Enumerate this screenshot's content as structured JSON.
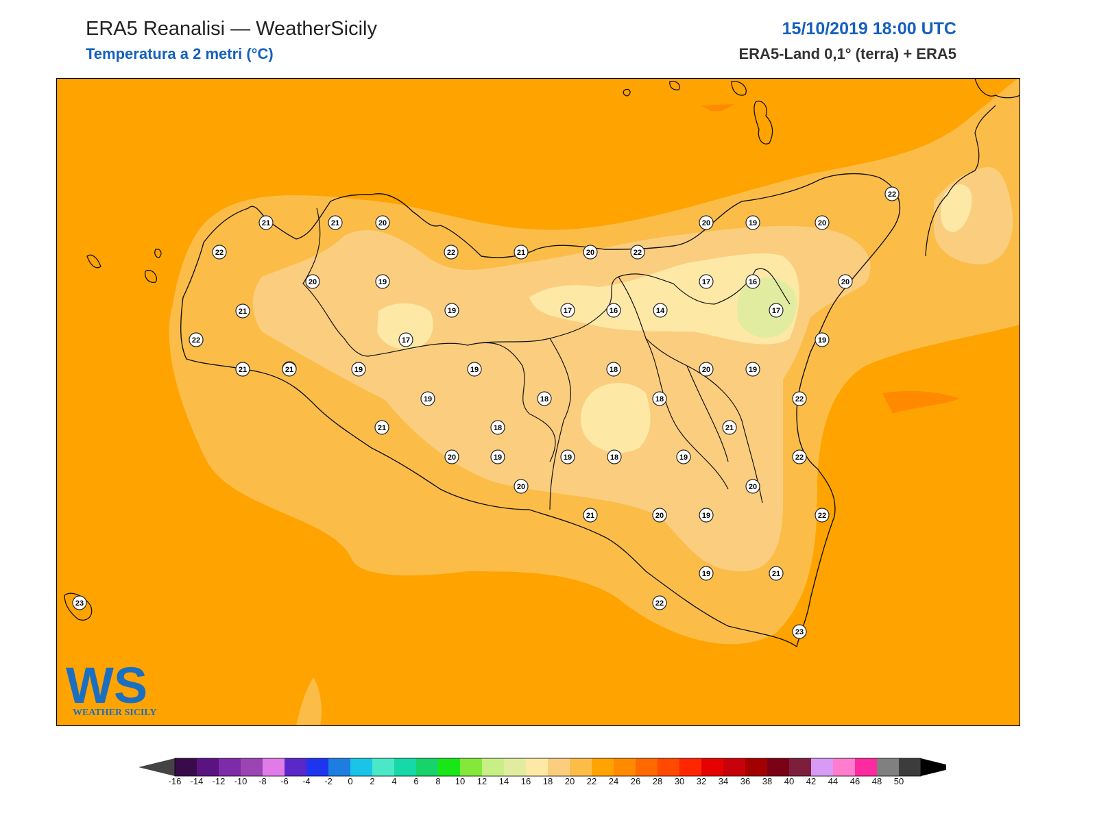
{
  "header": {
    "title": "ERA5 Reanalisi — WeatherSicily",
    "subtitle": "Temperatura a 2 metri (°C)",
    "datetime": "15/10/2019 18:00 UTC",
    "source": "ERA5-Land 0,1° (terra) + ERA5"
  },
  "logo": {
    "mark": "WS",
    "text": "WEATHER SICILY"
  },
  "colorbar": {
    "labels": [
      "-16",
      "-14",
      "-12",
      "-10",
      "-8",
      "-6",
      "-4",
      "-2",
      "0",
      "2",
      "4",
      "6",
      "8",
      "10",
      "12",
      "14",
      "16",
      "18",
      "20",
      "22",
      "24",
      "26",
      "28",
      "30",
      "32",
      "34",
      "36",
      "38",
      "40",
      "42",
      "44",
      "46",
      "48",
      "50"
    ],
    "colors": [
      "#3a0b4a",
      "#5a1480",
      "#7d2ba8",
      "#9b45b5",
      "#e07be8",
      "#5a27c8",
      "#1e35f0",
      "#1e7de0",
      "#1ac4e6",
      "#4be8c8",
      "#15d9a6",
      "#16d36a",
      "#19e619",
      "#83e83a",
      "#c8ef86",
      "#e1eca0",
      "#fde8a6",
      "#fbcd7e",
      "#fbbd48",
      "#ffa300",
      "#ff8a00",
      "#ff6a00",
      "#ff4a00",
      "#ff2600",
      "#e60000",
      "#c8000a",
      "#a30000",
      "#7a0016",
      "#7d1f3c",
      "#d79af5",
      "#ff7ccf",
      "#ff2aa0",
      "#808080",
      "#3c3c3c"
    ],
    "arrow_low_color": "#444444",
    "arrow_high_color": "#000000"
  },
  "map_colors": {
    "sea": "#ffa300",
    "c22_24": "#fbbd48",
    "c20_22": "#fbcd7e",
    "c18_20": "#fde8a6",
    "c14_16": "#e1eca0",
    "c24_26": "#ff8a00"
  },
  "stations": [
    {
      "value": "21"
    },
    {
      "value": "21"
    },
    {
      "value": "20"
    },
    {
      "value": "22"
    },
    {
      "value": "22"
    },
    {
      "value": "21"
    },
    {
      "value": "20"
    },
    {
      "value": "22"
    },
    {
      "value": "20"
    },
    {
      "value": "19"
    },
    {
      "value": "21"
    },
    {
      "value": "21"
    },
    {
      "value": "21"
    },
    {
      "value": "22"
    },
    {
      "value": "20"
    },
    {
      "value": "19"
    },
    {
      "value": "20"
    },
    {
      "value": "17"
    },
    {
      "value": "16"
    },
    {
      "value": "20"
    },
    {
      "value": "20"
    },
    {
      "value": "19"
    },
    {
      "value": "19"
    },
    {
      "value": "17"
    },
    {
      "value": "17"
    },
    {
      "value": "16"
    },
    {
      "value": "14"
    },
    {
      "value": "22"
    },
    {
      "value": "17"
    },
    {
      "value": "19"
    },
    {
      "value": "21"
    },
    {
      "value": "21"
    },
    {
      "value": "19"
    },
    {
      "value": "19"
    },
    {
      "value": "18"
    },
    {
      "value": "20"
    },
    {
      "value": "19"
    },
    {
      "value": "19"
    },
    {
      "value": "18"
    },
    {
      "value": "18"
    },
    {
      "value": "22"
    },
    {
      "value": "21"
    },
    {
      "value": "21"
    },
    {
      "value": "18"
    },
    {
      "value": "20"
    },
    {
      "value": "19"
    },
    {
      "value": "18"
    },
    {
      "value": "19"
    },
    {
      "value": "22"
    },
    {
      "value": "20"
    },
    {
      "value": "20"
    },
    {
      "value": "21"
    },
    {
      "value": "20"
    },
    {
      "value": "19"
    },
    {
      "value": "22"
    },
    {
      "value": "19"
    },
    {
      "value": "21"
    },
    {
      "value": "22"
    },
    {
      "value": "23"
    },
    {
      "value": "23"
    }
  ]
}
